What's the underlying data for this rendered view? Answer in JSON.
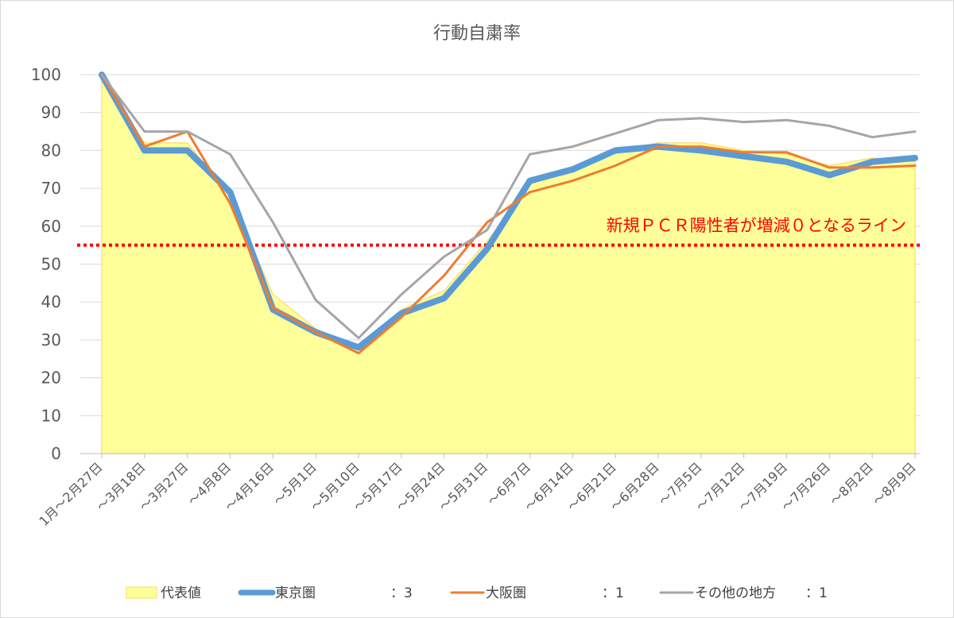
{
  "chart_data": {
    "type": "line",
    "title": "行動自粛率",
    "categories": [
      "1月～2月27日",
      "～3月18日",
      "～3月27日",
      "～4月8日",
      "～4月16日",
      "～5月1日",
      "～5月10日",
      "～5月17日",
      "～5月24日",
      "～5月31日",
      "～6月7日",
      "～6月14日",
      "～6月21日",
      "～6月28日",
      "～7月5日",
      "～7月12日",
      "～7月19日",
      "～7月26日",
      "～8月2日",
      "～8月9日"
    ],
    "ylim": [
      0,
      100
    ],
    "yticks": [
      0,
      10,
      20,
      30,
      40,
      50,
      60,
      70,
      80,
      90,
      100
    ],
    "grid": true,
    "legend_position": "bottom",
    "series": [
      {
        "name": "代表値",
        "kind": "area",
        "color": "#ffff99",
        "edge_color": "#ffd966",
        "values": [
          100,
          82,
          82,
          68,
          42,
          33,
          28,
          38,
          43,
          56,
          71,
          75,
          80,
          82,
          82,
          80,
          79,
          76,
          78,
          77
        ]
      },
      {
        "name": "東京圏",
        "weight": "：3",
        "kind": "line",
        "color": "#5b9bd5",
        "values": [
          100,
          80,
          80,
          69,
          38,
          32,
          28,
          37,
          41,
          54,
          72,
          75,
          80,
          81,
          80,
          78.5,
          77,
          73.5,
          77,
          78
        ]
      },
      {
        "name": "大阪圏",
        "weight": "：1",
        "kind": "line",
        "color": "#ed7d31",
        "values": [
          100,
          81,
          85,
          66,
          38.5,
          32,
          26.5,
          36,
          47,
          61,
          69,
          72,
          76,
          81,
          81,
          79.5,
          79.5,
          75.5,
          75.5,
          76
        ]
      },
      {
        "name": "その他の地方",
        "weight": "：1",
        "kind": "line",
        "color": "#a5a5a5",
        "values": [
          100,
          85,
          85,
          79,
          61,
          40.5,
          30.5,
          42,
          52,
          59,
          79,
          81,
          84.5,
          88,
          88.5,
          87.5,
          88,
          86.5,
          83.5,
          85
        ]
      }
    ],
    "threshold": {
      "value": 55,
      "color": "#ff0000",
      "label": "新規ＰＣＲ陽性者が増減０となるライン"
    }
  }
}
